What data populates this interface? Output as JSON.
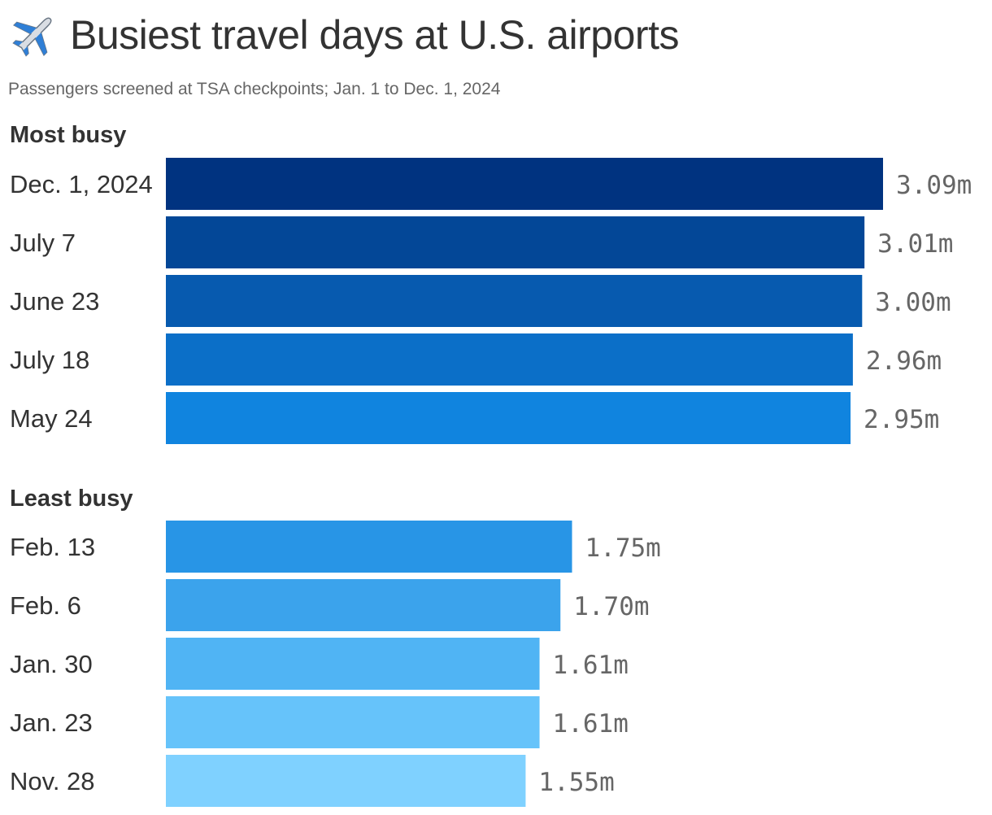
{
  "header": {
    "icon": "airplane-icon",
    "title": "Busiest travel days at U.S. airports",
    "subtitle": "Passengers screened at TSA checkpoints; Jan. 1 to Dec. 1, 2024"
  },
  "chart_data": {
    "type": "bar",
    "orientation": "horizontal",
    "unit_suffix": "m",
    "xlim": [
      0,
      3.09
    ],
    "grid": false,
    "groups": [
      {
        "name": "Most busy",
        "bars": [
          {
            "category": "Dec. 1, 2024",
            "value": 3.09,
            "label": "3.09m",
            "color": "#003380"
          },
          {
            "category": "July 7",
            "value": 3.01,
            "label": "3.01m",
            "color": "#034797"
          },
          {
            "category": "June 23",
            "value": 3.0,
            "label": "3.00m",
            "color": "#075aaf"
          },
          {
            "category": "July 18",
            "value": 2.96,
            "label": "2.96m",
            "color": "#0b6fc8"
          },
          {
            "category": "May 24",
            "value": 2.95,
            "label": "2.95m",
            "color": "#1084df"
          }
        ]
      },
      {
        "name": "Least busy",
        "bars": [
          {
            "category": "Feb. 13",
            "value": 1.75,
            "label": "1.75m",
            "color": "#2895e6"
          },
          {
            "category": "Feb. 6",
            "value": 1.7,
            "label": "1.70m",
            "color": "#3ba3ec"
          },
          {
            "category": "Jan. 30",
            "value": 1.61,
            "label": "1.61m",
            "color": "#50b4f4"
          },
          {
            "category": "Jan. 23",
            "value": 1.61,
            "label": "1.61m",
            "color": "#66c3fa"
          },
          {
            "category": "Nov. 28",
            "value": 1.55,
            "label": "1.55m",
            "color": "#7fd1ff"
          }
        ]
      }
    ]
  }
}
